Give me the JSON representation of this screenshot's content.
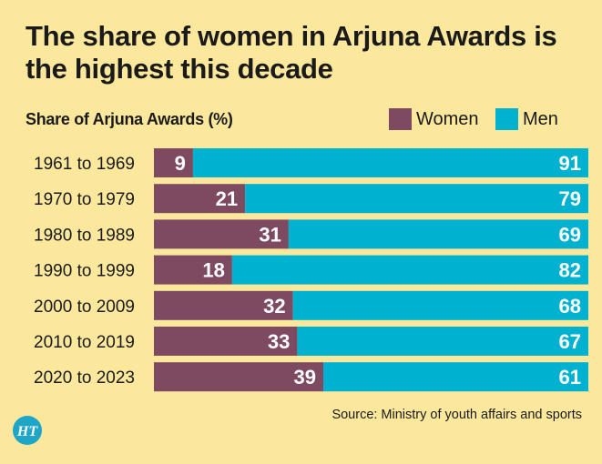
{
  "colors": {
    "background": "#fbe89d",
    "women": "#7e4a62",
    "men": "#00b2d0",
    "text": "#1a1a1a",
    "logo": "#1ea6c9"
  },
  "chart_data": {
    "type": "bar",
    "orientation": "horizontal",
    "stacked": true,
    "title": "The share of women in Arjuna Awards is the highest this decade",
    "subtitle": "Share of Arjuna Awards (%)",
    "categories": [
      "1961 to 1969",
      "1970 to 1979",
      "1980 to 1989",
      "1990 to 1999",
      "2000 to 2009",
      "2010 to 2019",
      "2020 to 2023"
    ],
    "series": [
      {
        "name": "Women",
        "values": [
          9,
          21,
          31,
          18,
          32,
          33,
          39
        ]
      },
      {
        "name": "Men",
        "values": [
          91,
          79,
          69,
          82,
          68,
          67,
          61
        ]
      }
    ],
    "xlim": [
      0,
      100
    ],
    "grid": false,
    "legend": "top-right",
    "source": "Source: Ministry of youth affairs and sports"
  },
  "logo": {
    "text": "HT",
    "icon": "ht-logo-icon"
  }
}
